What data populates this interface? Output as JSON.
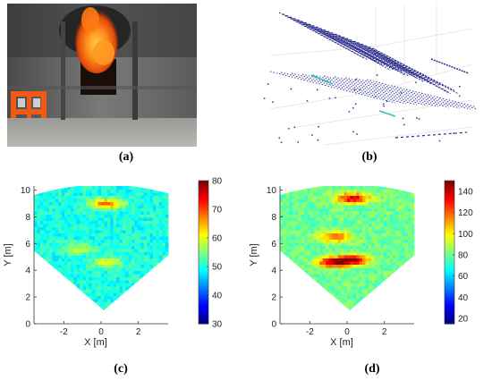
{
  "figure": {
    "captions": [
      "(a)",
      "(b)",
      "(c)",
      "(d)"
    ],
    "panel_a": {
      "content": "photo-fire-doorway-orange-barrier"
    },
    "panel_b": {
      "content": "3d-lidar-point-cloud"
    }
  },
  "chart_data": [
    {
      "type": "heatmap",
      "panel": "c",
      "xlabel": "X [m]",
      "ylabel": "Y [m]",
      "xticks": [
        "-2",
        "0",
        "2"
      ],
      "yticks": [
        "0",
        "2",
        "4",
        "6",
        "8",
        "10"
      ],
      "xlim": [
        -3.6,
        3.6
      ],
      "ylim": [
        0,
        10.3
      ],
      "colorbar": {
        "ticks": [
          "30",
          "40",
          "50",
          "60",
          "70",
          "80"
        ],
        "range": [
          30,
          80
        ]
      },
      "shape": "sector",
      "baseline_value": 50,
      "features": [
        {
          "x": 0.3,
          "y": 9.0,
          "value": 68
        },
        {
          "x": 0.3,
          "y": 4.6,
          "value": 60
        },
        {
          "x": -1.2,
          "y": 5.6,
          "value": 58
        }
      ]
    },
    {
      "type": "heatmap",
      "panel": "d",
      "xlabel": "X [m]",
      "ylabel": "Y [m]",
      "xticks": [
        "-2",
        "0",
        "2"
      ],
      "yticks": [
        "0",
        "2",
        "4",
        "6",
        "8",
        "10"
      ],
      "xlim": [
        -3.6,
        3.6
      ],
      "ylim": [
        0,
        10.3
      ],
      "colorbar": {
        "ticks": [
          "20",
          "40",
          "60",
          "80",
          "100",
          "120",
          "140"
        ],
        "range": [
          15,
          150
        ]
      },
      "shape": "sector",
      "baseline_value": 80,
      "features": [
        {
          "x": 0.3,
          "y": 9.4,
          "value": 140
        },
        {
          "x": 0.3,
          "y": 4.8,
          "value": 140
        },
        {
          "x": -0.8,
          "y": 4.6,
          "value": 135
        },
        {
          "x": -0.6,
          "y": 6.5,
          "value": 120
        }
      ]
    }
  ]
}
